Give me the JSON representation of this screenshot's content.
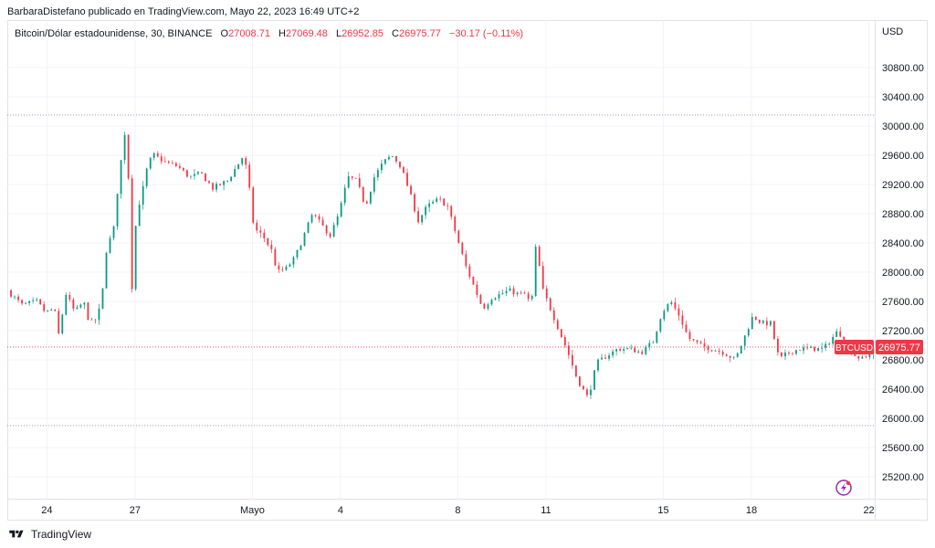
{
  "header": {
    "publisher_line": "BarbaraDistefano publicado en TradingView.com, Mayo 22, 2023 16:49 UTC+2"
  },
  "legend": {
    "symbol": "Bitcoin/Dólar estadounidense, 30, BINANCE",
    "o_key": "O",
    "o": "27008.71",
    "h_key": "H",
    "h": "27069.48",
    "l_key": "L",
    "l": "26952.85",
    "c_key": "C",
    "c": "26975.77",
    "change": "−30.17 (−0.11%)"
  },
  "footer": {
    "brand": "TradingView"
  },
  "colors": {
    "up": "#089981",
    "down": "#f23645",
    "grid": "#f0f3fa",
    "axis_text": "#131722"
  },
  "chart_data": {
    "type": "candlestick",
    "currency_label": "USD",
    "ticker_badge": "BTCUSD",
    "last_price": 26975.77,
    "last_price_label": "26975.77",
    "ylim": [
      24900,
      31450
    ],
    "y_ticks": [
      25200,
      25600,
      26000,
      26400,
      26800,
      27200,
      27600,
      28000,
      28400,
      28800,
      29200,
      29600,
      30000,
      30400,
      30800
    ],
    "y_tick_labels": [
      "25200.00",
      "25600.00",
      "26000.00",
      "26400.00",
      "26800.00",
      "27200.00",
      "27600.00",
      "28000.00",
      "28400.00",
      "28800.00",
      "29200.00",
      "29600.00",
      "30000.00",
      "30400.00",
      "30800.00"
    ],
    "x_days_range": [
      0,
      29.55
    ],
    "x_ticks": [
      {
        "label": "24",
        "day": 1.35
      },
      {
        "label": "27",
        "day": 4.35
      },
      {
        "label": "Mayo",
        "day": 8.35
      },
      {
        "label": "4",
        "day": 11.35
      },
      {
        "label": "8",
        "day": 15.35
      },
      {
        "label": "11",
        "day": 18.35
      },
      {
        "label": "15",
        "day": 22.35
      },
      {
        "label": "18",
        "day": 25.35
      },
      {
        "label": "22",
        "day": 29.35
      }
    ],
    "reference_lines": [
      30150,
      25900
    ],
    "path": [
      [
        0,
        27750
      ],
      [
        0.5,
        27550
      ],
      [
        1.0,
        27600
      ],
      [
        1.3,
        27450
      ],
      [
        1.6,
        27500
      ],
      [
        1.75,
        27150
      ],
      [
        2.0,
        27700
      ],
      [
        2.3,
        27450
      ],
      [
        2.6,
        27600
      ],
      [
        2.8,
        27300
      ],
      [
        3.0,
        27350
      ],
      [
        3.2,
        27550
      ],
      [
        3.4,
        28400
      ],
      [
        3.6,
        28500
      ],
      [
        3.8,
        29300
      ],
      [
        4.0,
        29900
      ],
      [
        4.1,
        29600
      ],
      [
        4.25,
        27800
      ],
      [
        4.4,
        28800
      ],
      [
        4.6,
        29100
      ],
      [
        4.8,
        29500
      ],
      [
        5.0,
        29600
      ],
      [
        5.4,
        29500
      ],
      [
        5.8,
        29450
      ],
      [
        6.2,
        29300
      ],
      [
        6.6,
        29350
      ],
      [
        7.0,
        29150
      ],
      [
        7.5,
        29250
      ],
      [
        7.9,
        29500
      ],
      [
        8.05,
        29600
      ],
      [
        8.2,
        29300
      ],
      [
        8.4,
        28600
      ],
      [
        8.7,
        28500
      ],
      [
        9.0,
        28300
      ],
      [
        9.2,
        28000
      ],
      [
        9.5,
        28050
      ],
      [
        9.8,
        28200
      ],
      [
        10.1,
        28500
      ],
      [
        10.4,
        28800
      ],
      [
        10.7,
        28650
      ],
      [
        11.0,
        28500
      ],
      [
        11.3,
        28800
      ],
      [
        11.6,
        29300
      ],
      [
        11.9,
        29250
      ],
      [
        12.2,
        28900
      ],
      [
        12.5,
        29300
      ],
      [
        12.8,
        29500
      ],
      [
        13.1,
        29600
      ],
      [
        13.4,
        29450
      ],
      [
        13.7,
        29100
      ],
      [
        14.0,
        28700
      ],
      [
        14.3,
        28900
      ],
      [
        14.7,
        29000
      ],
      [
        15.0,
        28900
      ],
      [
        15.3,
        28500
      ],
      [
        15.6,
        28100
      ],
      [
        15.9,
        27800
      ],
      [
        16.2,
        27500
      ],
      [
        16.5,
        27650
      ],
      [
        16.8,
        27700
      ],
      [
        17.1,
        27750
      ],
      [
        17.4,
        27700
      ],
      [
        17.7,
        27700
      ],
      [
        17.85,
        27450
      ],
      [
        17.95,
        28300
      ],
      [
        18.05,
        28350
      ],
      [
        18.2,
        27800
      ],
      [
        18.5,
        27500
      ],
      [
        18.8,
        27200
      ],
      [
        19.1,
        26900
      ],
      [
        19.4,
        26550
      ],
      [
        19.6,
        26400
      ],
      [
        19.75,
        26300
      ],
      [
        19.95,
        26500
      ],
      [
        20.05,
        26750
      ],
      [
        20.4,
        26850
      ],
      [
        20.8,
        26950
      ],
      [
        21.2,
        26950
      ],
      [
        21.6,
        26900
      ],
      [
        22.0,
        27050
      ],
      [
        22.3,
        27450
      ],
      [
        22.6,
        27600
      ],
      [
        22.9,
        27400
      ],
      [
        23.2,
        27100
      ],
      [
        23.6,
        27000
      ],
      [
        24.0,
        26950
      ],
      [
        24.4,
        26900
      ],
      [
        24.8,
        26800
      ],
      [
        25.1,
        27100
      ],
      [
        25.4,
        27400
      ],
      [
        25.7,
        27300
      ],
      [
        26.0,
        27300
      ],
      [
        26.3,
        26800
      ],
      [
        26.6,
        26900
      ],
      [
        27.0,
        26950
      ],
      [
        27.4,
        26950
      ],
      [
        27.8,
        26950
      ],
      [
        28.1,
        27100
      ],
      [
        28.3,
        27200
      ],
      [
        28.6,
        27000
      ],
      [
        28.9,
        26850
      ],
      [
        29.2,
        26800
      ],
      [
        29.5,
        26975.77
      ]
    ]
  }
}
